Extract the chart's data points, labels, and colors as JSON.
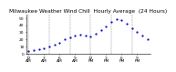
{
  "title": "Milwaukee Weather Wind Chill  Hourly Average  (24 Hours)",
  "hours": [
    0,
    1,
    2,
    3,
    4,
    5,
    6,
    7,
    8,
    9,
    10,
    11,
    12,
    13,
    14,
    15,
    16,
    17,
    18,
    19,
    20,
    21,
    22,
    23
  ],
  "values": [
    4,
    5,
    6,
    8,
    10,
    13,
    16,
    20,
    23,
    25,
    27,
    26,
    24,
    28,
    33,
    38,
    44,
    48,
    47,
    42,
    36,
    30,
    25,
    20
  ],
  "line_color": "#0000cc",
  "bg_color": "#ffffff",
  "grid_color": "#888888",
  "ylim": [
    0,
    55
  ],
  "yticks": [
    0,
    10,
    20,
    30,
    40,
    50
  ],
  "xlim": [
    -0.5,
    23.5
  ],
  "title_fontsize": 4.2,
  "tick_fontsize": 3.2,
  "marker_size": 1.2,
  "grid_interval": 4,
  "xtick_interval": 3
}
